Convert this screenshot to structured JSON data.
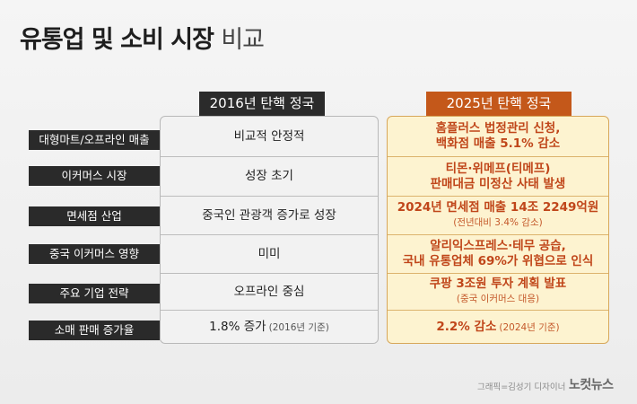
{
  "title": {
    "main": "유통업 및 소비 시장",
    "sub": "비교"
  },
  "columns": {
    "left_header": "2016년 탄핵 정국",
    "right_header": "2025년 탄핵 정국"
  },
  "rows": [
    {
      "label": "대형마트/오프라인 매출",
      "y2016": {
        "text": "비교적 안정적"
      },
      "y2025": {
        "line1": "홈플러스 법정관리 신청,",
        "line2": "백화점 매출 5.1% 감소"
      }
    },
    {
      "label": "이커머스 시장",
      "y2016": {
        "text": "성장 초기"
      },
      "y2025": {
        "line1": "티몬·위메프(티메프)",
        "line2": "판매대금 미정산 사태 발생"
      }
    },
    {
      "label": "면세점 산업",
      "y2016": {
        "text": "중국인 관광객 증가로 성장"
      },
      "y2025": {
        "line1": "2024년 면세점 매출 14조 2249억원",
        "note": "(전년대비 3.4% 감소)"
      }
    },
    {
      "label": "중국 이커머스 영향",
      "y2016": {
        "text": "미미"
      },
      "y2025": {
        "line1": "알리익스프레스·테무 공습,",
        "line2": "국내 유통업체 69%가 위협으로 인식"
      }
    },
    {
      "label": "주요 기업 전략",
      "y2016": {
        "text": "오프라인 중심"
      },
      "y2025": {
        "line1": "쿠팡 3조원 투자 계획 발표",
        "note": "(중국 이커머스 대응)"
      }
    },
    {
      "label": "소매 판매 증가율",
      "y2016": {
        "text": "1.8% 증가",
        "note": "(2016년 기준)"
      },
      "y2025": {
        "line1": "2.2% 감소",
        "note": "(2024년 기준)"
      }
    }
  ],
  "footer": {
    "credit": "그래픽=김성기 디자이너",
    "logo": "노컷뉴스"
  }
}
